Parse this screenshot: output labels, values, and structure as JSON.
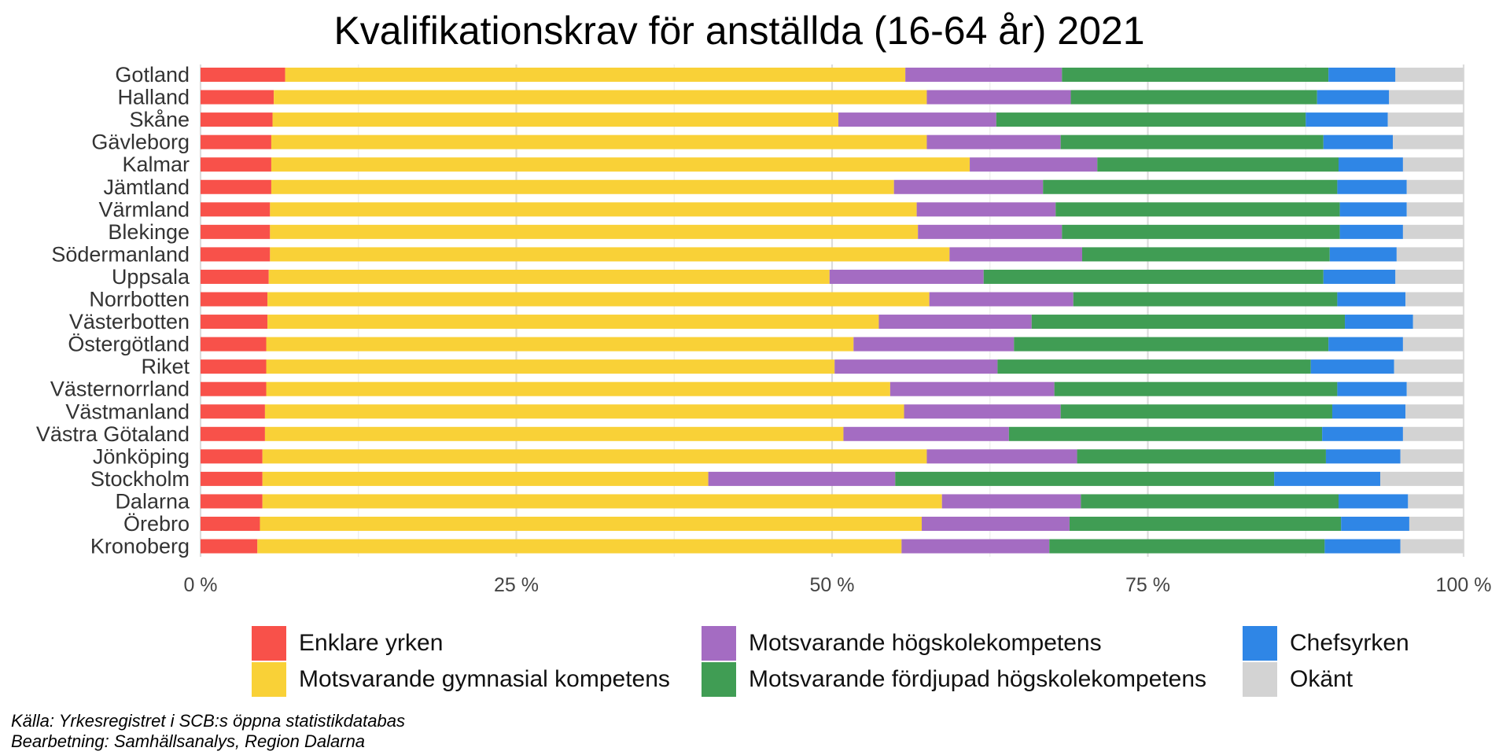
{
  "chart_data": {
    "type": "bar",
    "orientation": "horizontal",
    "stacked": true,
    "normalized": true,
    "title": "Kvalifikationskrav för anställda (16-64 år) 2021",
    "xlim": [
      0,
      100
    ],
    "x_ticks": [
      0,
      25,
      50,
      75,
      100
    ],
    "x_tick_labels": [
      "0 %",
      "25 %",
      "50 %",
      "75 %",
      "100 %"
    ],
    "grid": true,
    "legend_position": "bottom",
    "categories": [
      "Gotland",
      "Halland",
      "Skåne",
      "Gävleborg",
      "Kalmar",
      "Jämtland",
      "Värmland",
      "Blekinge",
      "Södermanland",
      "Uppsala",
      "Norrbotten",
      "Västerbotten",
      "Östergötland",
      "Riket",
      "Västernorrland",
      "Västmanland",
      "Västra Götaland",
      "Jönköping",
      "Stockholm",
      "Dalarna",
      "Örebro",
      "Kronoberg"
    ],
    "series": [
      {
        "name": "Enklare yrken",
        "color": "#f8514a",
        "values": [
          6.7,
          5.8,
          5.7,
          5.6,
          5.6,
          5.6,
          5.5,
          5.5,
          5.5,
          5.4,
          5.3,
          5.3,
          5.2,
          5.2,
          5.2,
          5.1,
          5.1,
          4.9,
          4.9,
          4.9,
          4.7,
          4.5
        ]
      },
      {
        "name": "Motsvarande gymnasial kompetens",
        "color": "#f9d137",
        "values": [
          49.1,
          51.7,
          44.8,
          51.9,
          55.3,
          49.3,
          51.2,
          51.3,
          53.8,
          44.4,
          52.4,
          48.4,
          46.5,
          45.0,
          49.4,
          50.6,
          45.8,
          52.6,
          35.3,
          53.8,
          52.4,
          51.0
        ]
      },
      {
        "name": "Motsvarande högskolekompetens",
        "color": "#a46cc2",
        "values": [
          12.4,
          11.4,
          12.5,
          10.6,
          10.1,
          11.8,
          11.0,
          11.4,
          10.5,
          12.2,
          11.4,
          12.1,
          12.7,
          12.9,
          13.0,
          12.4,
          13.1,
          11.9,
          14.8,
          11.0,
          11.7,
          11.7
        ]
      },
      {
        "name": "Motsvarande fördjupad högskolekompetens",
        "color": "#409d54",
        "values": [
          21.1,
          19.5,
          24.5,
          20.8,
          19.1,
          23.3,
          22.5,
          22.0,
          19.6,
          26.9,
          20.9,
          24.8,
          24.9,
          24.8,
          22.4,
          21.5,
          24.8,
          19.7,
          30.0,
          20.4,
          21.5,
          21.8
        ]
      },
      {
        "name": "Chefsyrken",
        "color": "#2f86e6",
        "values": [
          5.3,
          5.7,
          6.5,
          5.5,
          5.1,
          5.5,
          5.3,
          5.0,
          5.3,
          5.7,
          5.4,
          5.4,
          5.9,
          6.6,
          5.5,
          5.8,
          6.4,
          5.9,
          8.4,
          5.5,
          5.4,
          6.0
        ]
      },
      {
        "name": "Okänt",
        "color": "#d3d3d3",
        "values": [
          5.4,
          5.9,
          6.0,
          5.6,
          4.8,
          4.5,
          4.5,
          4.8,
          5.3,
          5.4,
          4.6,
          4.0,
          4.8,
          5.5,
          4.5,
          4.6,
          4.8,
          5.0,
          6.6,
          4.4,
          4.3,
          5.0
        ]
      }
    ]
  },
  "source_lines": [
    "Källa: Yrkesregistret i SCB:s öppna statistikdatabas",
    "Bearbetning: Samhällsanalys, Region Dalarna"
  ]
}
